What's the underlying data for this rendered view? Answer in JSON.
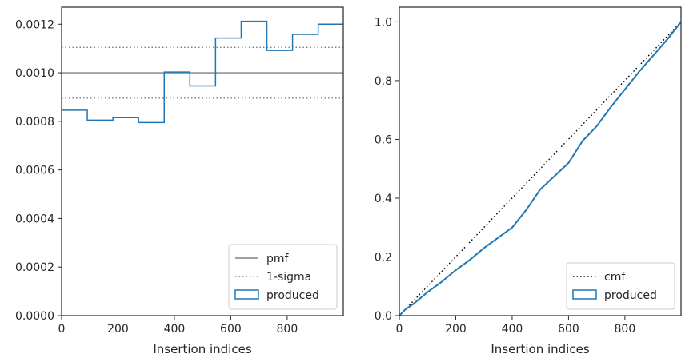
{
  "chart_data": [
    {
      "type": "histogram-step",
      "title": "",
      "xlabel": "Insertion indices",
      "ylabel": "",
      "xlim": [
        0,
        999
      ],
      "ylim": [
        0,
        0.00127
      ],
      "xticks": [
        0,
        200,
        400,
        600,
        800
      ],
      "yticks": [
        0.0,
        0.0002,
        0.0004,
        0.0006,
        0.0008,
        0.001,
        0.0012
      ],
      "ytick_labels": [
        "0.0000",
        "0.0002",
        "0.0004",
        "0.0006",
        "0.0008",
        "0.0010",
        "0.0012"
      ],
      "xtick_labels": [
        "0",
        "200",
        "400",
        "600",
        "800"
      ],
      "legend_position": "bottom-right",
      "reference_lines": [
        {
          "name": "pmf",
          "style": "solid",
          "color": "#808080",
          "y": 0.001
        },
        {
          "name": "1-sigma",
          "style": "dotted",
          "color": "#808080",
          "y": 0.0011046
        },
        {
          "name": "1-sigma-lower",
          "style": "dotted",
          "color": "#808080",
          "y": 0.0008954,
          "legend": false
        }
      ],
      "series": [
        {
          "name": "produced",
          "color": "#1f77b4",
          "bin_edges": [
            0,
            91,
            182,
            273,
            364,
            455,
            546,
            637,
            728,
            819,
            910,
            999
          ],
          "values": [
            0.000846,
            0.000805,
            0.000815,
            0.000795,
            0.001003,
            0.000946,
            0.001143,
            0.001212,
            0.001092,
            0.001158,
            0.0012
          ]
        }
      ],
      "legend": [
        "pmf",
        "1-sigma",
        "produced"
      ]
    },
    {
      "type": "line",
      "title": "",
      "xlabel": "Insertion indices",
      "ylabel": "",
      "xlim": [
        0,
        999
      ],
      "ylim": [
        0,
        1.05
      ],
      "xticks": [
        0,
        200,
        400,
        600,
        800
      ],
      "yticks": [
        0.0,
        0.2,
        0.4,
        0.6,
        0.8,
        1.0
      ],
      "ytick_labels": [
        "0.0",
        "0.2",
        "0.4",
        "0.6",
        "0.8",
        "1.0"
      ],
      "xtick_labels": [
        "0",
        "200",
        "400",
        "600",
        "800"
      ],
      "legend_position": "bottom-right",
      "series": [
        {
          "name": "cmf",
          "style": "dotted",
          "color": "#000000",
          "x": [
            0,
            999
          ],
          "y": [
            0.0,
            1.0
          ]
        },
        {
          "name": "produced",
          "color": "#1f77b4",
          "x": [
            0,
            20,
            50,
            100,
            150,
            200,
            250,
            300,
            350,
            400,
            450,
            500,
            550,
            600,
            650,
            700,
            750,
            800,
            850,
            900,
            950,
            999
          ],
          "y": [
            0.0,
            0.02,
            0.04,
            0.08,
            0.115,
            0.155,
            0.19,
            0.23,
            0.265,
            0.3,
            0.36,
            0.43,
            0.475,
            0.52,
            0.595,
            0.645,
            0.71,
            0.77,
            0.83,
            0.885,
            0.94,
            1.0
          ]
        }
      ],
      "legend": [
        "cmf",
        "produced"
      ]
    }
  ]
}
